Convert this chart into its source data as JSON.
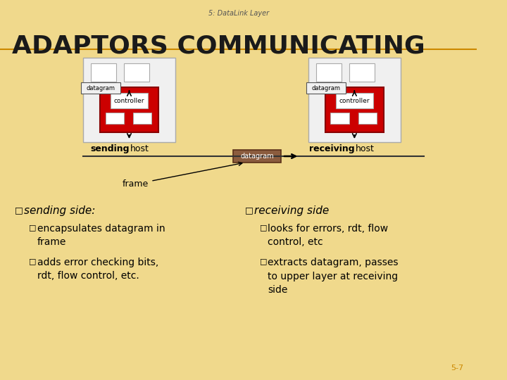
{
  "title": "5: DataLink Layer",
  "heading": "ADAPTORS COMMUNICATING",
  "bg_color": "#f0d98c",
  "heading_color": "#1a1a1a",
  "title_color": "#555555",
  "accent_color": "#cc8800",
  "red_color": "#cc0000",
  "brown_datagram": "#8b5c3e",
  "sending_host_label": "sending host",
  "receiving_host_label": "receiving host",
  "datagram_label": "datagram",
  "controller_label": "controller",
  "frame_label": "frame",
  "slide_num": "5-7",
  "bullet1_heading": "sending side:",
  "bullet1_sub1": "encapsulates datagram in\nframe",
  "bullet1_sub2": "adds error checking bits,\nrdt, flow control, etc.",
  "bullet2_heading": "receiving side",
  "bullet2_sub1": "looks for errors, rdt, flow\ncontrol, etc",
  "bullet2_sub2": "extracts datagram, passes\nto upper layer at receiving\nside"
}
